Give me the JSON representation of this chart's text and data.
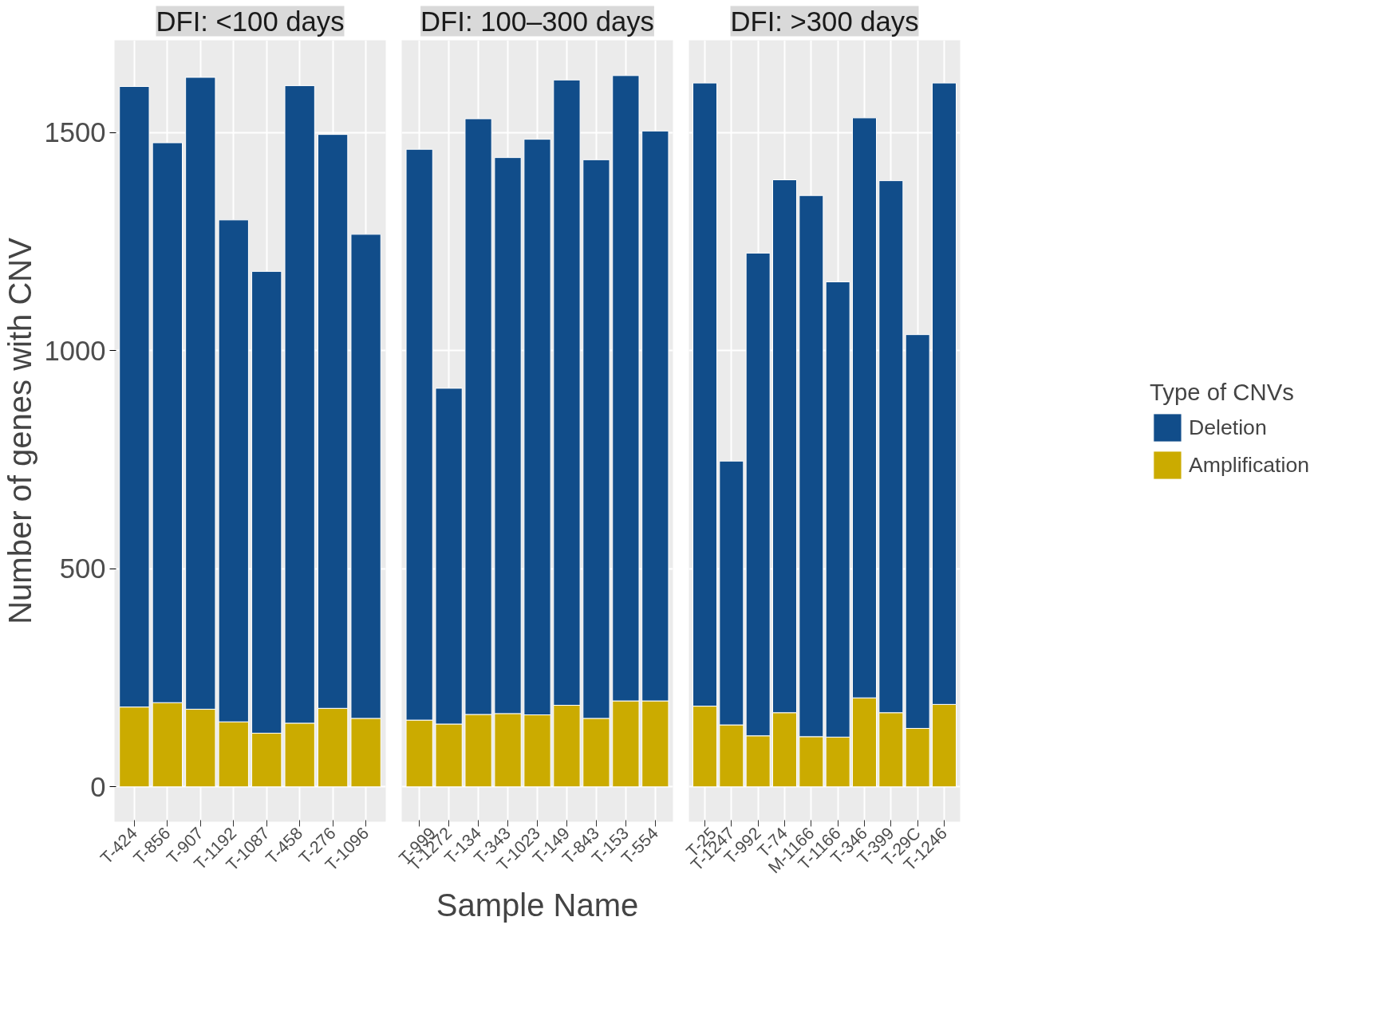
{
  "chart_data": [
    {
      "type": "bar",
      "title": "DFI: <100 days",
      "ylabel": "Number of genes with CNV",
      "stacked": true,
      "grid": true,
      "ylim": [
        -80,
        1712
      ],
      "yticks": [
        0,
        500,
        1000,
        1500
      ],
      "categories": [
        "T-424",
        "T-856",
        "T-907",
        "T-1192",
        "T-1087",
        "T-458",
        "T-276",
        "T-1096"
      ],
      "series": [
        {
          "color": "#cbab00",
          "values": [
            183,
            193,
            178,
            149,
            123,
            146,
            180,
            157
          ]
        },
        {
          "color": "#114d8a",
          "values": [
            1423,
            1284,
            1449,
            1151,
            1059,
            1462,
            1316,
            1110
          ]
        }
      ]
    },
    {
      "type": "bar",
      "title": "DFI: 100–300 days",
      "xlabel": "Sample Name",
      "stacked": true,
      "grid": true,
      "ylim": [
        -80,
        1712
      ],
      "yticks": [
        0,
        500,
        1000,
        1500
      ],
      "tick_labels": "x",
      "categories": [
        "T-999",
        "T-1272",
        "T-134",
        "T-343",
        "T-1023",
        "T-149",
        "T-843",
        "T-153",
        "T-554"
      ],
      "series": [
        {
          "color": "#cbab00",
          "values": [
            153,
            144,
            166,
            168,
            165,
            187,
            157,
            197,
            197
          ]
        },
        {
          "color": "#114d8a",
          "values": [
            1309,
            770,
            1366,
            1275,
            1320,
            1434,
            1281,
            1434,
            1307
          ]
        }
      ]
    },
    {
      "type": "bar",
      "title": "DFI: >300 days",
      "stacked": true,
      "grid": true,
      "ylim": [
        -80,
        1712
      ],
      "yticks": [
        0,
        500,
        1000,
        1500
      ],
      "tick_labels": "x",
      "legend": "right",
      "legend_title": "Type of CNVs",
      "categories": [
        "T-25",
        "T-1247",
        "T-992",
        "T-74",
        "M-1166",
        "T-1166",
        "T-346",
        "T-399",
        "T-29C",
        "T-1246"
      ],
      "series": [
        {
          "name": "Amplification",
          "color": "#cbab00",
          "values": [
            185,
            142,
            117,
            170,
            115,
            114,
            204,
            170,
            134,
            189
          ]
        },
        {
          "name": "Deletion",
          "color": "#114d8a",
          "values": [
            1429,
            605,
            1107,
            1222,
            1241,
            1044,
            1330,
            1220,
            903,
            1425
          ]
        }
      ]
    }
  ]
}
